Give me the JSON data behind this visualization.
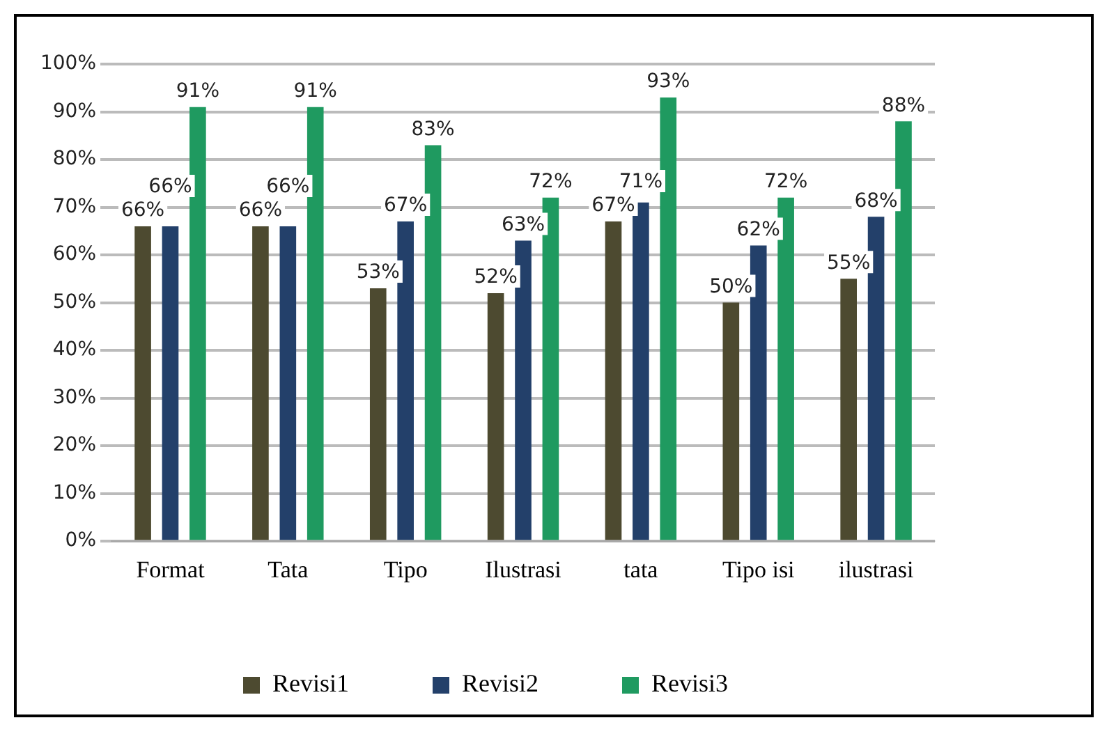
{
  "chart_data": {
    "type": "bar",
    "categories": [
      "Format",
      "Tata",
      "Tipo",
      "Ilustrasi",
      "tata",
      "Tipo isi",
      "ilustrasi"
    ],
    "series": [
      {
        "name": "Revisi1",
        "color": "#4d4a30",
        "values": [
          66,
          66,
          53,
          52,
          67,
          50,
          55
        ],
        "value_labels": [
          "66%",
          "66%",
          "53%",
          "52%",
          "67%",
          "50%",
          "55%"
        ]
      },
      {
        "name": "Revisi2",
        "color": "#23406a",
        "values": [
          66,
          66,
          67,
          63,
          71,
          62,
          68
        ],
        "value_labels": [
          "66%",
          "66%",
          "67%",
          "63%",
          "71%",
          "62%",
          "68%"
        ]
      },
      {
        "name": "Revisi3",
        "color": "#1f9a60",
        "values": [
          91,
          91,
          83,
          72,
          93,
          72,
          88
        ],
        "value_labels": [
          "91%",
          "91%",
          "83%",
          "72%",
          "93%",
          "72%",
          "88%"
        ]
      }
    ],
    "ylim": [
      0,
      100
    ],
    "yticks": [
      {
        "value": 0,
        "label": "0%"
      },
      {
        "value": 10,
        "label": "10%"
      },
      {
        "value": 20,
        "label": "20%"
      },
      {
        "value": 30,
        "label": "30%"
      },
      {
        "value": 40,
        "label": "40%"
      },
      {
        "value": 50,
        "label": "50%"
      },
      {
        "value": 60,
        "label": "60%"
      },
      {
        "value": 70,
        "label": "70%"
      },
      {
        "value": 80,
        "label": "80%"
      },
      {
        "value": 90,
        "label": "90%"
      },
      {
        "value": 100,
        "label": "100%"
      }
    ],
    "grid": "y",
    "legend": "bottom"
  }
}
